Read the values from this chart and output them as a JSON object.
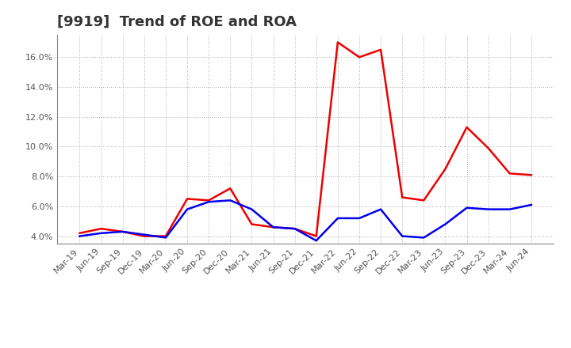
{
  "title": "[9919]  Trend of ROE and ROA",
  "x_labels": [
    "Mar-19",
    "Jun-19",
    "Sep-19",
    "Dec-19",
    "Mar-20",
    "Jun-20",
    "Sep-20",
    "Dec-20",
    "Mar-21",
    "Jun-21",
    "Sep-21",
    "Dec-21",
    "Mar-22",
    "Jun-22",
    "Sep-22",
    "Dec-22",
    "Mar-23",
    "Jun-23",
    "Sep-23",
    "Dec-23",
    "Mar-24",
    "Jun-24"
  ],
  "roe": [
    4.2,
    4.5,
    4.3,
    4.0,
    4.0,
    6.5,
    6.4,
    7.2,
    4.8,
    4.6,
    4.5,
    4.0,
    17.0,
    16.0,
    16.5,
    6.6,
    6.4,
    8.5,
    11.3,
    9.9,
    8.2,
    8.1
  ],
  "roa": [
    4.0,
    4.2,
    4.3,
    4.1,
    3.9,
    5.8,
    6.3,
    6.4,
    5.8,
    4.6,
    4.5,
    3.7,
    5.2,
    5.2,
    5.8,
    4.0,
    3.9,
    4.8,
    5.9,
    5.8,
    5.8,
    6.1
  ],
  "roe_color": "#ee0000",
  "roa_color": "#0000ee",
  "background_color": "#ffffff",
  "grid_color": "#999999",
  "ylim_min": 3.5,
  "ylim_max": 17.5,
  "yticks": [
    4.0,
    6.0,
    8.0,
    10.0,
    12.0,
    14.0,
    16.0
  ],
  "line_width": 1.8,
  "title_fontsize": 13,
  "tick_fontsize": 8,
  "legend_fontsize": 10
}
